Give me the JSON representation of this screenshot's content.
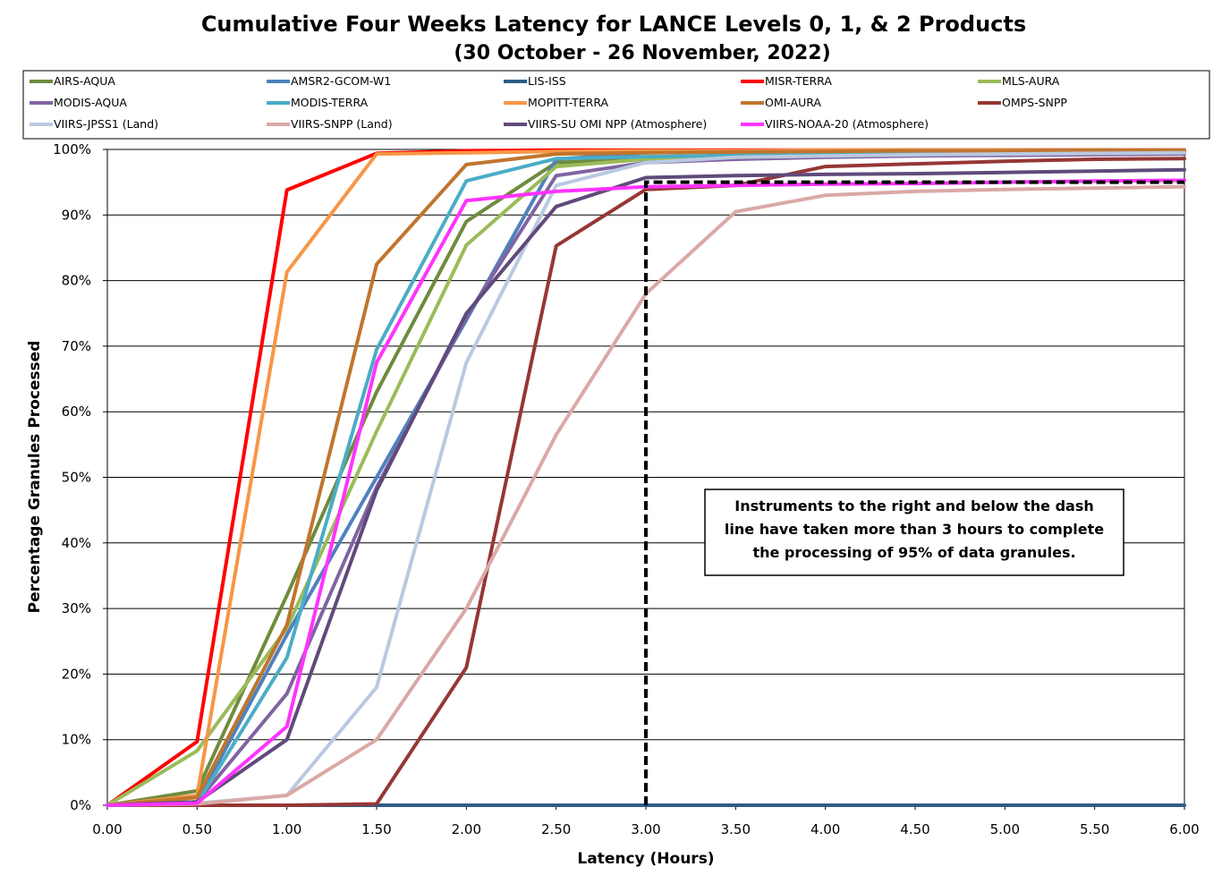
{
  "chart_data": {
    "type": "line",
    "title": "Cumulative Four Weeks Latency  for LANCE Levels 0, 1, & 2 Products",
    "subtitle": "(30  October   -  26  November,  2022)",
    "xlabel": "Latency (Hours)",
    "ylabel": "Percentage Granules Processed",
    "xlim": [
      0,
      6
    ],
    "ylim": [
      0,
      100
    ],
    "x_ticks": [
      "0.00",
      "0.50",
      "1.00",
      "1.50",
      "2.00",
      "2.50",
      "3.00",
      "3.50",
      "4.00",
      "4.50",
      "5.00",
      "5.50",
      "6.00"
    ],
    "y_ticks": [
      "0%",
      "10%",
      "20%",
      "30%",
      "40%",
      "50%",
      "60%",
      "70%",
      "80%",
      "90%",
      "100%"
    ],
    "grid": "horizontal",
    "legend_position": "top",
    "x": [
      0,
      0.5,
      1,
      1.5,
      2,
      2.5,
      3,
      3.5,
      4,
      4.5,
      5,
      5.5,
      6
    ],
    "series": [
      {
        "name": "AIRS-AQUA",
        "color": "#6E8B3D",
        "values": [
          0,
          2.2,
          32,
          63,
          89,
          98,
          98.6,
          98.8,
          99,
          99.2,
          99.3,
          99.4,
          99.5
        ]
      },
      {
        "name": "AMSR2-GCOM-W1",
        "color": "#4F81BD",
        "values": [
          0,
          0.5,
          26,
          50,
          74,
          98.5,
          99.5,
          99.7,
          99.8,
          99.9,
          99.9,
          99.9,
          99.9
        ]
      },
      {
        "name": "LIS-ISS",
        "color": "#2E5C8A",
        "values": [
          0,
          0,
          0,
          0,
          0,
          0,
          0,
          0,
          0,
          0,
          0,
          0,
          0
        ]
      },
      {
        "name": "MISR-TERRA",
        "color": "#FF0000",
        "values": [
          0,
          9.7,
          93.8,
          99.4,
          99.8,
          99.9,
          99.9,
          99.9,
          99.9,
          99.9,
          99.9,
          99.9,
          99.9
        ]
      },
      {
        "name": "MLS-AURA",
        "color": "#9BBB59",
        "values": [
          0,
          8.3,
          27,
          57,
          85.4,
          97.4,
          98.5,
          98.7,
          98.9,
          99.1,
          99.2,
          99.3,
          99.4
        ]
      },
      {
        "name": "MODIS-AQUA",
        "color": "#8064A2",
        "values": [
          0,
          0.5,
          17,
          48.5,
          74.5,
          96,
          98,
          98.5,
          98.8,
          99,
          99.1,
          99.2,
          99.3
        ]
      },
      {
        "name": "MODIS-TERRA",
        "color": "#4BACC6",
        "values": [
          0,
          0.3,
          22.5,
          69.5,
          95.2,
          98.6,
          98.9,
          99.1,
          99.2,
          99.3,
          99.4,
          99.5,
          99.6
        ]
      },
      {
        "name": "MOPITT-TERRA",
        "color": "#F79646",
        "values": [
          0,
          1.5,
          81.3,
          99.3,
          99.5,
          99.7,
          99.8,
          99.8,
          99.9,
          99.9,
          99.9,
          99.9,
          99.9
        ]
      },
      {
        "name": "OMI-AURA",
        "color": "#C0752E",
        "values": [
          0,
          1.2,
          27.5,
          82.5,
          97.7,
          99.3,
          99.5,
          99.6,
          99.7,
          99.8,
          99.8,
          99.9,
          99.9
        ]
      },
      {
        "name": "OMPS-SNPP",
        "color": "#953735",
        "values": [
          0,
          0,
          0,
          0.2,
          21,
          85.3,
          93.9,
          94.5,
          97.4,
          97.8,
          98.2,
          98.5,
          98.6
        ]
      },
      {
        "name": "VIIRS-JPSS1 (Land)",
        "color": "#B9C9E0",
        "values": [
          0,
          0.3,
          1.5,
          18,
          67.5,
          94.5,
          98,
          98.8,
          99,
          99.2,
          99.3,
          99.4,
          99.5
        ]
      },
      {
        "name": "VIIRS-SNPP (Land)",
        "color": "#D9A9A6",
        "values": [
          0,
          0.2,
          1.5,
          10,
          30,
          56.5,
          78,
          90.5,
          93,
          93.6,
          93.9,
          94.1,
          94.3
        ]
      },
      {
        "name": "VIIRS-SU OMI NPP (Atmosphere)",
        "color": "#604A7B",
        "values": [
          0,
          0.5,
          10,
          48,
          75,
          91.3,
          95.7,
          96,
          96.2,
          96.3,
          96.5,
          96.7,
          96.9
        ]
      },
      {
        "name": "VIIRS-NOAA-20 (Atmosphere)",
        "color": "#FF33FF",
        "values": [
          0,
          0.3,
          12,
          67.5,
          92.2,
          93.6,
          94.3,
          94.5,
          94.7,
          94.8,
          95,
          95.2,
          95.3
        ]
      }
    ],
    "reference_line": {
      "style": "dashed",
      "color": "#000000",
      "points": [
        [
          3.0,
          0
        ],
        [
          3.0,
          95
        ],
        [
          6.0,
          95
        ]
      ]
    },
    "annotation": {
      "lines": [
        "Instruments to the right and below the dash",
        "line have taken more than 3 hours to complete",
        "the processing of 95% of data granules."
      ]
    }
  }
}
